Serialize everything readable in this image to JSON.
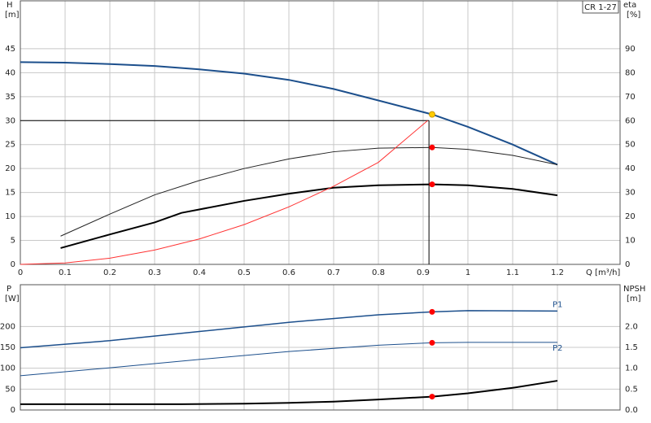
{
  "chart_data": [
    {
      "type": "line",
      "label_box": "CR 1-27",
      "y_label": "H",
      "y_unit": "[m]",
      "y2_label": "eta",
      "y2_unit": "[%]",
      "x_label": "Q [m³/h]",
      "xlim": [
        0,
        1.34
      ],
      "xticks": [
        0,
        0.1,
        0.2,
        0.3,
        0.4,
        0.5,
        0.6,
        0.7,
        0.8,
        0.9,
        1,
        1.1,
        1.2
      ],
      "ylim": [
        0,
        55
      ],
      "yticks": [
        0,
        5,
        10,
        15,
        20,
        25,
        30,
        35,
        40,
        45
      ],
      "y2lim": [
        0,
        110
      ],
      "y2ticks": [
        0,
        10,
        20,
        30,
        40,
        50,
        60,
        70,
        80,
        90
      ],
      "grid": true,
      "series": [
        {
          "color": "#1c4f8c",
          "width": 2,
          "x": [
            0,
            0.1,
            0.2,
            0.3,
            0.4,
            0.5,
            0.6,
            0.7,
            0.8,
            0.92,
            1.0,
            1.1,
            1.2
          ],
          "values": [
            42.2,
            42.1,
            41.8,
            41.4,
            40.7,
            39.8,
            38.5,
            36.6,
            34.2,
            31.3,
            28.7,
            25,
            20.8
          ]
        },
        {
          "color": "#222222",
          "width": 1,
          "axis": "y2",
          "x": [
            0.09,
            0.2,
            0.3,
            0.4,
            0.5,
            0.6,
            0.7,
            0.8,
            0.92,
            1.0,
            1.1,
            1.2
          ],
          "values": [
            11.8,
            21,
            29,
            35,
            40,
            44,
            47,
            48.5,
            48.8,
            48,
            45.5,
            41.6
          ]
        },
        {
          "color": "#000000",
          "width": 2,
          "axis": "y2",
          "x": [
            0.09,
            0.2,
            0.3,
            0.36,
            0.5,
            0.6,
            0.7,
            0.8,
            0.92,
            1.0,
            1.1,
            1.2
          ],
          "values": [
            6.8,
            12.5,
            17.5,
            21.5,
            26.5,
            29.5,
            32,
            33,
            33.4,
            33,
            31.5,
            28.8
          ]
        },
        {
          "color": "#ff3333",
          "width": 1,
          "x": [
            0,
            0.1,
            0.2,
            0.3,
            0.4,
            0.5,
            0.6,
            0.7,
            0.8,
            0.91
          ],
          "values": [
            0,
            0.3,
            1.3,
            3,
            5.3,
            8.3,
            12,
            16.3,
            21.3,
            30
          ]
        }
      ],
      "reference_lines": {
        "x": 0.913,
        "y": 30
      },
      "points": [
        {
          "x": 0.92,
          "y": 31.3,
          "color": "#ffcc00"
        },
        {
          "x": 0.92,
          "y": 48.8,
          "color": "#ff0000",
          "axis": "y2"
        },
        {
          "x": 0.92,
          "y": 33.4,
          "color": "#ff0000",
          "axis": "y2"
        }
      ]
    },
    {
      "type": "line",
      "y_label": "P",
      "y_unit": "[W]",
      "y2_label": "NPSH",
      "y2_unit": "[m]",
      "xlim": [
        0,
        1.34
      ],
      "xticks": [
        0,
        0.1,
        0.2,
        0.3,
        0.4,
        0.5,
        0.6,
        0.7,
        0.8,
        0.9,
        1,
        1.1,
        1.2
      ],
      "ylim": [
        0,
        300
      ],
      "yticks": [
        0,
        50,
        100,
        150,
        200
      ],
      "y2lim": [
        0,
        3
      ],
      "y2ticks": [
        {
          "value": 0,
          "label": "0.0"
        },
        {
          "value": 0.5,
          "label": "0.5"
        },
        {
          "value": 1,
          "label": "1.0"
        },
        {
          "value": 1.5,
          "label": "1.5"
        },
        {
          "value": 2,
          "label": "2.0"
        }
      ],
      "grid": true,
      "series": [
        {
          "name": "P1",
          "color": "#1c4f8c",
          "width": 1.5,
          "x": [
            0,
            0.2,
            0.4,
            0.6,
            0.8,
            0.92,
            1.0,
            1.2
          ],
          "values": [
            149,
            166,
            188,
            210,
            228,
            235,
            238,
            237
          ]
        },
        {
          "name": "P2",
          "color": "#1c4f8c",
          "width": 1,
          "x": [
            0,
            0.2,
            0.4,
            0.6,
            0.8,
            0.92,
            1.0,
            1.2
          ],
          "values": [
            82,
            101,
            121,
            140,
            155,
            161,
            162,
            162
          ]
        },
        {
          "color": "#000000",
          "width": 2,
          "axis": "y2",
          "x": [
            0,
            0.36,
            0.5,
            0.6,
            0.7,
            0.8,
            0.92,
            1.0,
            1.1,
            1.2
          ],
          "values": [
            0.14,
            0.14,
            0.15,
            0.17,
            0.2,
            0.25,
            0.32,
            0.4,
            0.53,
            0.7
          ]
        }
      ],
      "points": [
        {
          "x": 0.92,
          "y": 235,
          "color": "#ff0000"
        },
        {
          "x": 0.92,
          "y": 161,
          "color": "#ff0000"
        },
        {
          "x": 0.92,
          "y": 0.32,
          "color": "#ff0000",
          "axis": "y2"
        }
      ]
    }
  ]
}
